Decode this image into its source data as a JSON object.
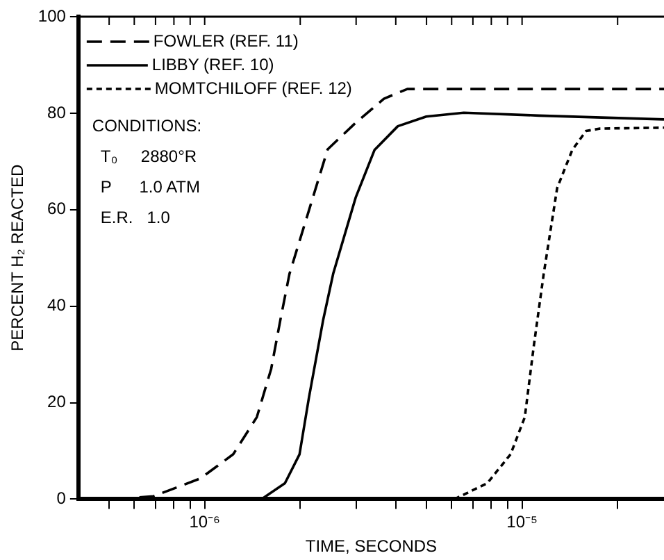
{
  "chart_data": {
    "type": "line",
    "xlabel": "TIME, SECONDS",
    "ylabel": "PERCENT H₂ REACTED",
    "log": "x",
    "grid": false,
    "legend": "top left",
    "marker": "none",
    "xlim": [
      4e-07,
      2.8e-05
    ],
    "ylim": [
      0,
      100
    ],
    "xticks": [
      {
        "value": 5e-07,
        "label": null
      },
      {
        "value": 6e-07,
        "label": null
      },
      {
        "value": 7e-07,
        "label": null
      },
      {
        "value": 8e-07,
        "label": null
      },
      {
        "value": 9e-07,
        "label": null
      },
      {
        "value": 1e-06,
        "label": "10⁻⁶"
      },
      {
        "value": 2e-06,
        "label": null
      },
      {
        "value": 3e-06,
        "label": null
      },
      {
        "value": 4e-06,
        "label": null
      },
      {
        "value": 5e-06,
        "label": null
      },
      {
        "value": 6e-06,
        "label": null
      },
      {
        "value": 7e-06,
        "label": null
      },
      {
        "value": 8e-06,
        "label": null
      },
      {
        "value": 9e-06,
        "label": null
      },
      {
        "value": 1e-05,
        "label": "10⁻⁵"
      },
      {
        "value": 2e-05,
        "label": null
      }
    ],
    "yticks": [
      0,
      20,
      40,
      60,
      80,
      100
    ],
    "annotations": [
      "CONDITIONS:",
      "T₀     2880°R",
      "P      1.0 ATM",
      "E.R.   1.0"
    ],
    "series": [
      {
        "name": "FOWLER (REF. 11)",
        "color": "#000000",
        "line_style": "dashed",
        "x": [
          5.25e-07,
          6.9e-07,
          9.7e-07,
          1.23e-06,
          1.46e-06,
          1.62e-06,
          1.73e-06,
          1.85e-06,
          2.44e-06,
          2.99e-06,
          3.67e-06,
          4.35e-06,
          2.8e-05
        ],
        "values": [
          0,
          0.6,
          4.3,
          9.3,
          17,
          27,
          37,
          46.7,
          72.5,
          78,
          83,
          85,
          85
        ]
      },
      {
        "name": "LIBBY (REF. 10)",
        "color": "#000000",
        "line_style": "solid",
        "x": [
          4e-07,
          1.51e-06,
          1.79e-06,
          1.99e-06,
          2.13e-06,
          2.36e-06,
          2.54e-06,
          2.99e-06,
          3.43e-06,
          4.06e-06,
          4.99e-06,
          6.55e-06,
          1.13e-05,
          2.8e-05
        ],
        "values": [
          0,
          0,
          3.3,
          9.3,
          21,
          37,
          46.7,
          62.5,
          72.4,
          77.3,
          79.3,
          80.1,
          79.5,
          78.7
        ]
      },
      {
        "name": "MOMTCHILOFF (REF. 12)",
        "color": "#000000",
        "line_style": "dotted",
        "x": [
          6.12e-06,
          7.77e-06,
          9.2e-06,
          1.02e-05,
          1.09e-05,
          1.17e-05,
          1.29e-05,
          1.44e-05,
          1.59e-05,
          1.76e-05,
          2.8e-05
        ],
        "values": [
          0,
          3.3,
          9.3,
          17,
          32,
          46.7,
          64.5,
          72.4,
          76.3,
          76.8,
          77
        ]
      }
    ]
  }
}
